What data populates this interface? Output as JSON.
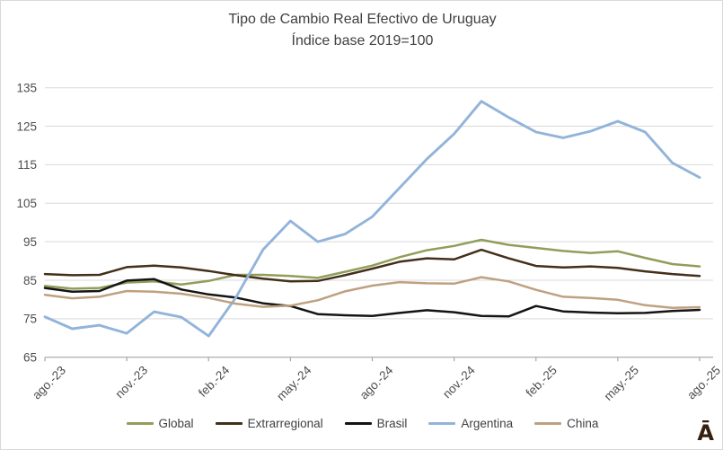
{
  "title": {
    "line1": "Tipo de Cambio Real Efectivo de Uruguay",
    "line2": "Índice base 2019=100"
  },
  "chart_data": {
    "type": "line",
    "title": "Tipo de Cambio Real Efectivo de Uruguay",
    "subtitle": "Índice base 2019=100",
    "xlabel": "",
    "ylabel": "",
    "ylim": [
      65,
      135
    ],
    "y_ticks": [
      65,
      75,
      85,
      95,
      105,
      115,
      125,
      135
    ],
    "x_tick_labels": [
      "ago.-23",
      "nov.-23",
      "feb.-24",
      "may.-24",
      "ago.-24",
      "nov.-24",
      "feb.-25",
      "may.-25",
      "ago.-25"
    ],
    "grid": "horizontal",
    "legend_position": "bottom",
    "categories": [
      "ago.-23",
      "sep.-23",
      "oct.-23",
      "nov.-23",
      "dic.-23",
      "ene.-24",
      "feb.-24",
      "mar.-24",
      "abr.-24",
      "may.-24",
      "jun.-24",
      "jul.-24",
      "ago.-24",
      "sep.-24",
      "oct.-24",
      "nov.-24",
      "dic.-24",
      "ene.-25",
      "feb.-25",
      "mar.-25",
      "abr.-25",
      "may.-25",
      "jun.-25",
      "jul.-25",
      "ago.-25"
    ],
    "series": [
      {
        "name": "Global",
        "color": "#909e5a",
        "values": [
          83.5,
          82.8,
          83.0,
          84.4,
          84.7,
          83.9,
          84.8,
          86.4,
          86.4,
          86.1,
          85.6,
          87.2,
          88.8,
          91.0,
          92.8,
          93.9,
          95.5,
          94.2,
          93.4,
          92.6,
          92.1,
          92.5,
          90.8,
          89.2,
          88.6
        ]
      },
      {
        "name": "Extrarregional",
        "color": "#44301a",
        "values": [
          86.6,
          86.3,
          86.4,
          88.4,
          88.8,
          88.3,
          87.4,
          86.3,
          85.4,
          84.7,
          84.8,
          86.3,
          88.0,
          89.8,
          90.7,
          90.4,
          92.9,
          90.7,
          88.7,
          88.3,
          88.6,
          88.2,
          87.3,
          86.6,
          86.1
        ]
      },
      {
        "name": "Brasil",
        "color": "#141414",
        "values": [
          83.0,
          82.0,
          82.2,
          84.9,
          85.3,
          82.6,
          81.3,
          80.5,
          79.0,
          78.3,
          76.2,
          75.9,
          75.7,
          76.5,
          77.2,
          76.7,
          75.7,
          75.6,
          78.3,
          76.9,
          76.6,
          76.4,
          76.5,
          77.0,
          77.3
        ]
      },
      {
        "name": "Argentina",
        "color": "#92b4da",
        "values": [
          75.5,
          72.4,
          73.3,
          71.2,
          76.8,
          75.4,
          70.5,
          80.5,
          93.0,
          100.4,
          95.0,
          97.0,
          101.5,
          109.0,
          116.5,
          123.0,
          131.5,
          127.3,
          123.5,
          122.0,
          123.7,
          126.3,
          123.5,
          115.5,
          111.7
        ]
      },
      {
        "name": "China",
        "color": "#bfa080",
        "values": [
          81.2,
          80.3,
          80.7,
          82.2,
          82.0,
          81.5,
          80.4,
          78.9,
          78.1,
          78.4,
          79.8,
          82.1,
          83.6,
          84.5,
          84.2,
          84.1,
          85.8,
          84.7,
          82.5,
          80.7,
          80.4,
          79.9,
          78.5,
          77.8,
          78.0
        ]
      }
    ]
  },
  "colors": {
    "gridline": "#d9d9d9",
    "axis": "#a6a6a6",
    "tick_label": "#4d4d4d",
    "title_text": "#404040"
  },
  "logo": {
    "text": "Ā",
    "color": "#33200f"
  }
}
